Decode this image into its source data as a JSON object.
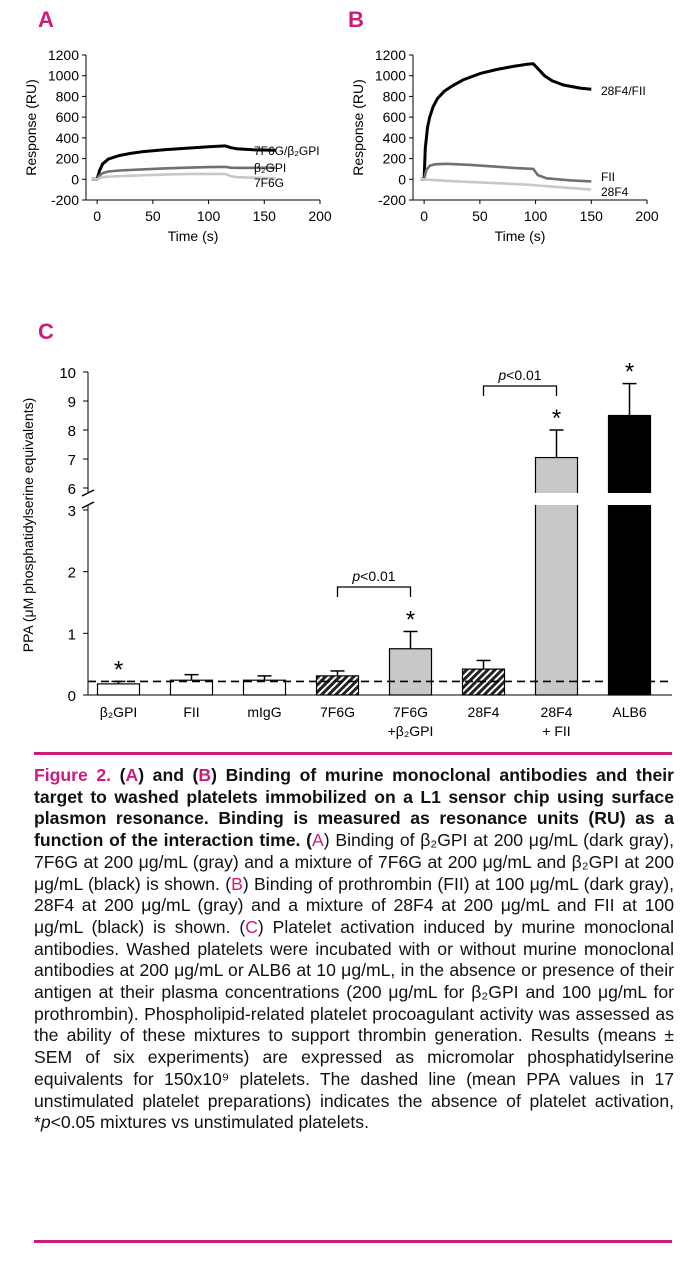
{
  "colors": {
    "accent": "#cc1b7a",
    "black": "#000000",
    "dark_gray": "#707070",
    "light_gray": "#c8c8c8",
    "bar_gray": "#c8c8c8"
  },
  "panel_a": {
    "letter": "A",
    "chart_data": {
      "type": "line",
      "xlabel": "Time (s)",
      "ylabel": "Response (RU)",
      "xlim": [
        -10,
        200
      ],
      "ylim": [
        -200,
        1200
      ],
      "xticks": [
        "0",
        "50",
        "100",
        "150",
        "200"
      ],
      "yticks": [
        "-200",
        "0",
        "200",
        "400",
        "600",
        "800",
        "1000",
        "1200"
      ],
      "series": [
        {
          "name": "7F6G/β₂GPI",
          "color": "black",
          "x": [
            -5,
            0,
            2,
            5,
            10,
            20,
            30,
            40,
            60,
            80,
            100,
            115,
            120,
            125,
            140,
            160
          ],
          "y": [
            0,
            0,
            80,
            150,
            195,
            230,
            250,
            265,
            285,
            300,
            315,
            322,
            305,
            295,
            285,
            280
          ]
        },
        {
          "name": "β₂GPI",
          "color": "dark_gray",
          "x": [
            -5,
            0,
            2,
            5,
            10,
            20,
            40,
            60,
            80,
            100,
            115,
            120,
            130,
            160
          ],
          "y": [
            0,
            0,
            35,
            60,
            75,
            85,
            95,
            105,
            112,
            118,
            120,
            112,
            110,
            112
          ]
        },
        {
          "name": "7F6G",
          "color": "light_gray",
          "x": [
            -5,
            0,
            2,
            5,
            10,
            20,
            40,
            60,
            80,
            100,
            115,
            120,
            125,
            140,
            160
          ],
          "y": [
            0,
            0,
            10,
            20,
            25,
            30,
            38,
            45,
            50,
            52,
            52,
            30,
            20,
            15,
            10
          ]
        }
      ]
    }
  },
  "panel_b": {
    "letter": "B",
    "chart_data": {
      "type": "line",
      "xlabel": "Time (s)",
      "ylabel": "Response (RU)",
      "xlim": [
        -10,
        200
      ],
      "ylim": [
        -200,
        1200
      ],
      "xticks": [
        "0",
        "50",
        "100",
        "150",
        "200"
      ],
      "yticks": [
        "-200",
        "0",
        "200",
        "400",
        "600",
        "800",
        "1000",
        "1200"
      ],
      "series": [
        {
          "name": "28F4/FII",
          "color": "black",
          "x": [
            -3,
            0,
            1,
            3,
            5,
            8,
            12,
            18,
            25,
            35,
            50,
            65,
            80,
            92,
            98,
            102,
            108,
            115,
            125,
            140,
            150
          ],
          "y": [
            0,
            0,
            300,
            500,
            600,
            700,
            780,
            850,
            900,
            960,
            1020,
            1060,
            1090,
            1110,
            1115,
            1070,
            1000,
            950,
            910,
            880,
            870
          ]
        },
        {
          "name": "FII",
          "color": "dark_gray",
          "x": [
            -3,
            0,
            2,
            5,
            10,
            20,
            40,
            60,
            80,
            98,
            102,
            110,
            130,
            150
          ],
          "y": [
            0,
            0,
            90,
            130,
            145,
            150,
            140,
            125,
            110,
            100,
            40,
            10,
            -10,
            -20
          ]
        },
        {
          "name": "28F4",
          "color": "light_gray",
          "x": [
            -3,
            0,
            5,
            20,
            40,
            60,
            80,
            98,
            102,
            120,
            150
          ],
          "y": [
            0,
            0,
            -5,
            -15,
            -25,
            -35,
            -45,
            -55,
            -60,
            -75,
            -100
          ]
        }
      ]
    }
  },
  "panel_c": {
    "letter": "C",
    "chart_data": {
      "type": "bar",
      "ylabel": "PPA (μM phosphatidylserine equivalents)",
      "yticks_lower": [
        "0",
        "1",
        "2",
        "3"
      ],
      "yticks_upper": [
        "6",
        "7",
        "8",
        "9",
        "10"
      ],
      "ylim_lower": [
        0,
        3
      ],
      "ylim_upper": [
        6,
        10
      ],
      "baseline_dashed": 0.22,
      "categories": [
        {
          "label": "β₂GPI",
          "label2": "",
          "value": 0.18,
          "sem": 0.04,
          "fill": "white",
          "star": true
        },
        {
          "label": "FII",
          "label2": "",
          "value": 0.24,
          "sem": 0.09,
          "fill": "white",
          "star": false
        },
        {
          "label": "mIgG",
          "label2": "",
          "value": 0.24,
          "sem": 0.07,
          "fill": "white",
          "star": false
        },
        {
          "label": "7F6G",
          "label2": "",
          "value": 0.31,
          "sem": 0.08,
          "fill": "hatch",
          "star": false
        },
        {
          "label": "7F6G",
          "label2": "+β₂GPI",
          "value": 0.75,
          "sem": 0.28,
          "fill": "gray",
          "star": true
        },
        {
          "label": "28F4",
          "label2": "",
          "value": 0.42,
          "sem": 0.14,
          "fill": "hatch",
          "star": false
        },
        {
          "label": "28F4",
          "label2": "+ FII",
          "value": 7.05,
          "sem": 0.95,
          "fill": "gray",
          "star": true
        },
        {
          "label": "ALB6",
          "label2": "",
          "value": 8.5,
          "sem": 1.1,
          "fill": "black",
          "star": true
        }
      ],
      "comparisons": [
        {
          "from": 3,
          "to": 4,
          "text": "p<0.01"
        },
        {
          "from": 5,
          "to": 6,
          "text": "p<0.01"
        }
      ],
      "star_symbol": "*"
    }
  },
  "caption": {
    "figure_label": "Figure 2.",
    "text_1": " (",
    "ref_a1": "A",
    "text_2": ") and (",
    "ref_b1": "B",
    "text_3": ") Binding of murine monoclonal antibodies and their target to washed platelets immobilized on a L1 sensor chip using surface plasmon resonance. Binding is measured as resonance units (RU) as a function of the interaction time. (",
    "ref_a2": "A",
    "text_4": ") Binding of β₂GPI at 200 μg/mL (dark gray), 7F6G at 200 μg/mL (gray) and a mixture of 7F6G at 200 μg/mL and β₂GPI at 200 μg/mL (black) is shown. (",
    "ref_b2": "B",
    "text_5": ") Binding of prothrombin (FII) at 100 μg/mL (dark gray), 28F4 at 200 μg/mL (gray) and a mixture of 28F4 at 200 μg/mL and FII at 100 μg/mL (black) is shown. (",
    "ref_c": "C",
    "text_6": ") Platelet activation induced by murine monoclonal antibodies. Washed platelets were incubated with or without murine monoclonal antibodies at 200 μg/mL or ALB6 at 10 μg/mL, in the absence or presence of their antigen at their plasma concentrations (200 μg/mL for β₂GPI and 100 μg/mL for prothrombin). Phospholipid-related platelet procoagulant activity was assessed as the ability of these mixtures to support thrombin generation. Results (means ± SEM of six experiments) are expressed as micromolar phosphatidylserine equivalents for 150x10⁹ platelets. The dashed line (mean PPA values in 17 unstimulated platelet preparations) indicates the absence of platelet activation, *",
    "p_italic": "p",
    "text_7": "<0.05 mixtures vs unstimulated platelets."
  }
}
